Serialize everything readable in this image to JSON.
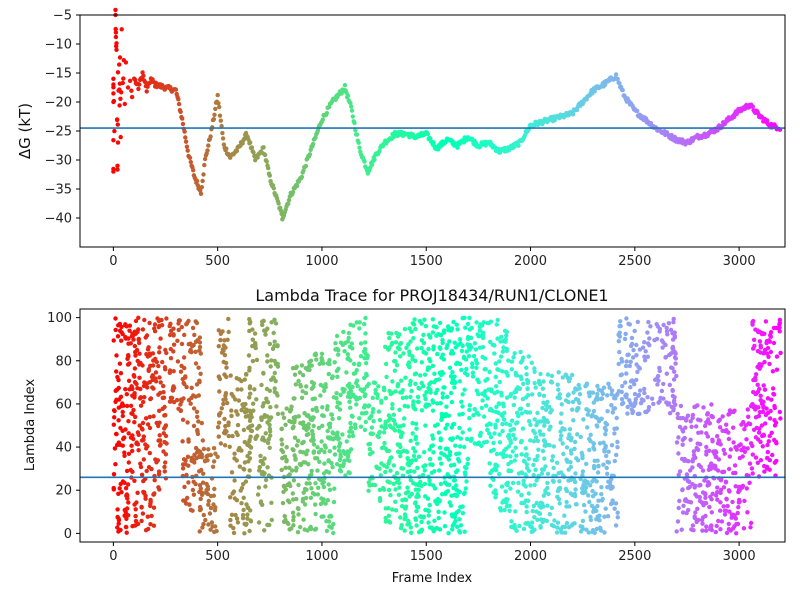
{
  "chart_data": [
    {
      "type": "scatter",
      "title": "",
      "xlabel": "",
      "ylabel": "ΔG (kT)",
      "xlim": [
        -160,
        3220
      ],
      "ylim": [
        -45,
        -5
      ],
      "xticks": [
        0,
        500,
        1000,
        1500,
        2000,
        2500,
        3000
      ],
      "yticks": [
        -5,
        -10,
        -15,
        -20,
        -25,
        -30,
        -35,
        -40
      ],
      "hline": -24.5,
      "colormap": "rainbow (red at frame 0 → violet at frame 3200)",
      "points": [
        [
          0,
          -32
        ],
        [
          0,
          -20
        ],
        [
          0,
          -16
        ],
        [
          5,
          -26
        ],
        [
          10,
          -5
        ],
        [
          12,
          -8
        ],
        [
          15,
          -11
        ],
        [
          18,
          -23
        ],
        [
          20,
          -31
        ],
        [
          22,
          -16
        ],
        [
          25,
          -19
        ],
        [
          28,
          -13
        ],
        [
          30,
          -22
        ],
        [
          32,
          -11.5
        ],
        [
          35,
          -27
        ],
        [
          40,
          -8.5
        ],
        [
          45,
          -17
        ],
        [
          50,
          -12.5
        ],
        [
          55,
          -20
        ],
        [
          60,
          -14.5
        ],
        [
          70,
          -18
        ],
        [
          80,
          -15.5
        ],
        [
          90,
          -19.5
        ],
        [
          100,
          -16
        ],
        [
          120,
          -17.5
        ],
        [
          140,
          -15
        ],
        [
          160,
          -18
        ],
        [
          180,
          -16
        ],
        [
          200,
          -17
        ],
        [
          250,
          -17.5
        ],
        [
          300,
          -18
        ],
        [
          330,
          -23
        ],
        [
          360,
          -29
        ],
        [
          390,
          -33
        ],
        [
          420,
          -35.5
        ],
        [
          440,
          -30
        ],
        [
          470,
          -25
        ],
        [
          500,
          -19
        ],
        [
          530,
          -27.5
        ],
        [
          560,
          -29.5
        ],
        [
          600,
          -28
        ],
        [
          640,
          -25.5
        ],
        [
          680,
          -30
        ],
        [
          720,
          -28
        ],
        [
          750,
          -33
        ],
        [
          800,
          -38.5
        ],
        [
          810,
          -40
        ],
        [
          850,
          -36
        ],
        [
          900,
          -33
        ],
        [
          950,
          -28
        ],
        [
          1000,
          -23
        ],
        [
          1050,
          -20
        ],
        [
          1110,
          -17.5
        ],
        [
          1140,
          -21
        ],
        [
          1180,
          -28
        ],
        [
          1220,
          -32
        ],
        [
          1260,
          -29
        ],
        [
          1300,
          -27
        ],
        [
          1350,
          -25.5
        ],
        [
          1400,
          -25.5
        ],
        [
          1450,
          -26
        ],
        [
          1500,
          -25.5
        ],
        [
          1550,
          -28
        ],
        [
          1600,
          -26.5
        ],
        [
          1650,
          -27.5
        ],
        [
          1700,
          -26
        ],
        [
          1750,
          -27.5
        ],
        [
          1800,
          -27
        ],
        [
          1850,
          -28.5
        ],
        [
          1900,
          -28
        ],
        [
          1950,
          -27
        ],
        [
          2000,
          -24
        ],
        [
          2100,
          -23
        ],
        [
          2200,
          -22
        ],
        [
          2250,
          -20
        ],
        [
          2300,
          -18
        ],
        [
          2350,
          -17
        ],
        [
          2410,
          -15.5
        ],
        [
          2450,
          -19
        ],
        [
          2500,
          -21.5
        ],
        [
          2550,
          -23
        ],
        [
          2600,
          -24.5
        ],
        [
          2650,
          -25.5
        ],
        [
          2700,
          -26.5
        ],
        [
          2750,
          -27
        ],
        [
          2800,
          -26
        ],
        [
          2850,
          -25.5
        ],
        [
          2900,
          -24.5
        ],
        [
          2950,
          -23
        ],
        [
          3000,
          -21.5
        ],
        [
          3050,
          -20.5
        ],
        [
          3100,
          -22.5
        ],
        [
          3150,
          -24
        ],
        [
          3200,
          -24.5
        ]
      ]
    },
    {
      "type": "scatter",
      "title": "Lambda Trace for PROJ18434/RUN1/CLONE1",
      "xlabel": "Frame Index",
      "ylabel": "Lambda Index",
      "xlim": [
        -160,
        3220
      ],
      "ylim": [
        -4,
        104
      ],
      "xticks": [
        0,
        500,
        1000,
        1500,
        2000,
        2500,
        3000
      ],
      "yticks": [
        0,
        20,
        40,
        60,
        80,
        100
      ],
      "hline": 26,
      "colormap": "rainbow (red at frame 0 → violet at frame 3200)",
      "segments": [
        {
          "x": [
            0,
            40
          ],
          "y": [
            0,
            100
          ]
        },
        {
          "x": [
            40,
            100
          ],
          "y": [
            0,
            100
          ]
        },
        {
          "x": [
            100,
            200
          ],
          "y": [
            0,
            100
          ]
        },
        {
          "x": [
            200,
            260
          ],
          "y": [
            20,
            100
          ]
        },
        {
          "x": [
            270,
            420
          ],
          "y": [
            55,
            100
          ]
        },
        {
          "x": [
            330,
            430
          ],
          "y": [
            10,
            55
          ]
        },
        {
          "x": [
            410,
            500
          ],
          "y": [
            0,
            40
          ]
        },
        {
          "x": [
            500,
            560
          ],
          "y": [
            40,
            100
          ]
        },
        {
          "x": [
            560,
            660
          ],
          "y": [
            0,
            75
          ]
        },
        {
          "x": [
            650,
            690
          ],
          "y": [
            40,
            100
          ]
        },
        {
          "x": [
            710,
            790
          ],
          "y": [
            55,
            100
          ]
        },
        {
          "x": [
            690,
            760
          ],
          "y": [
            0,
            55
          ]
        },
        {
          "x": [
            800,
            870
          ],
          "y": [
            0,
            60
          ]
        },
        {
          "x": [
            860,
            960
          ],
          "y": [
            0,
            80
          ]
        },
        {
          "x": [
            960,
            1060
          ],
          "y": [
            0,
            85
          ]
        },
        {
          "x": [
            1060,
            1140
          ],
          "y": [
            25,
            95
          ]
        },
        {
          "x": [
            1120,
            1220
          ],
          "y": [
            45,
            100
          ]
        },
        {
          "x": [
            1220,
            1300
          ],
          "y": [
            15,
            70
          ]
        },
        {
          "x": [
            1300,
            1420
          ],
          "y": [
            0,
            95
          ]
        },
        {
          "x": [
            1420,
            1560
          ],
          "y": [
            0,
            100
          ]
        },
        {
          "x": [
            1560,
            1700
          ],
          "y": [
            0,
            100
          ]
        },
        {
          "x": [
            1700,
            1800
          ],
          "y": [
            40,
            100
          ]
        },
        {
          "x": [
            1800,
            1890
          ],
          "y": [
            10,
            100
          ]
        },
        {
          "x": [
            1890,
            2020
          ],
          "y": [
            0,
            85
          ]
        },
        {
          "x": [
            2020,
            2200
          ],
          "y": [
            0,
            75
          ]
        },
        {
          "x": [
            2200,
            2420
          ],
          "y": [
            0,
            70
          ]
        },
        {
          "x": [
            2420,
            2700
          ],
          "y": [
            55,
            100
          ]
        },
        {
          "x": [
            2700,
            2820
          ],
          "y": [
            0,
            60
          ]
        },
        {
          "x": [
            2820,
            3060
          ],
          "y": [
            0,
            60
          ]
        },
        {
          "x": [
            3060,
            3200
          ],
          "y": [
            25,
            100
          ]
        }
      ]
    }
  ]
}
